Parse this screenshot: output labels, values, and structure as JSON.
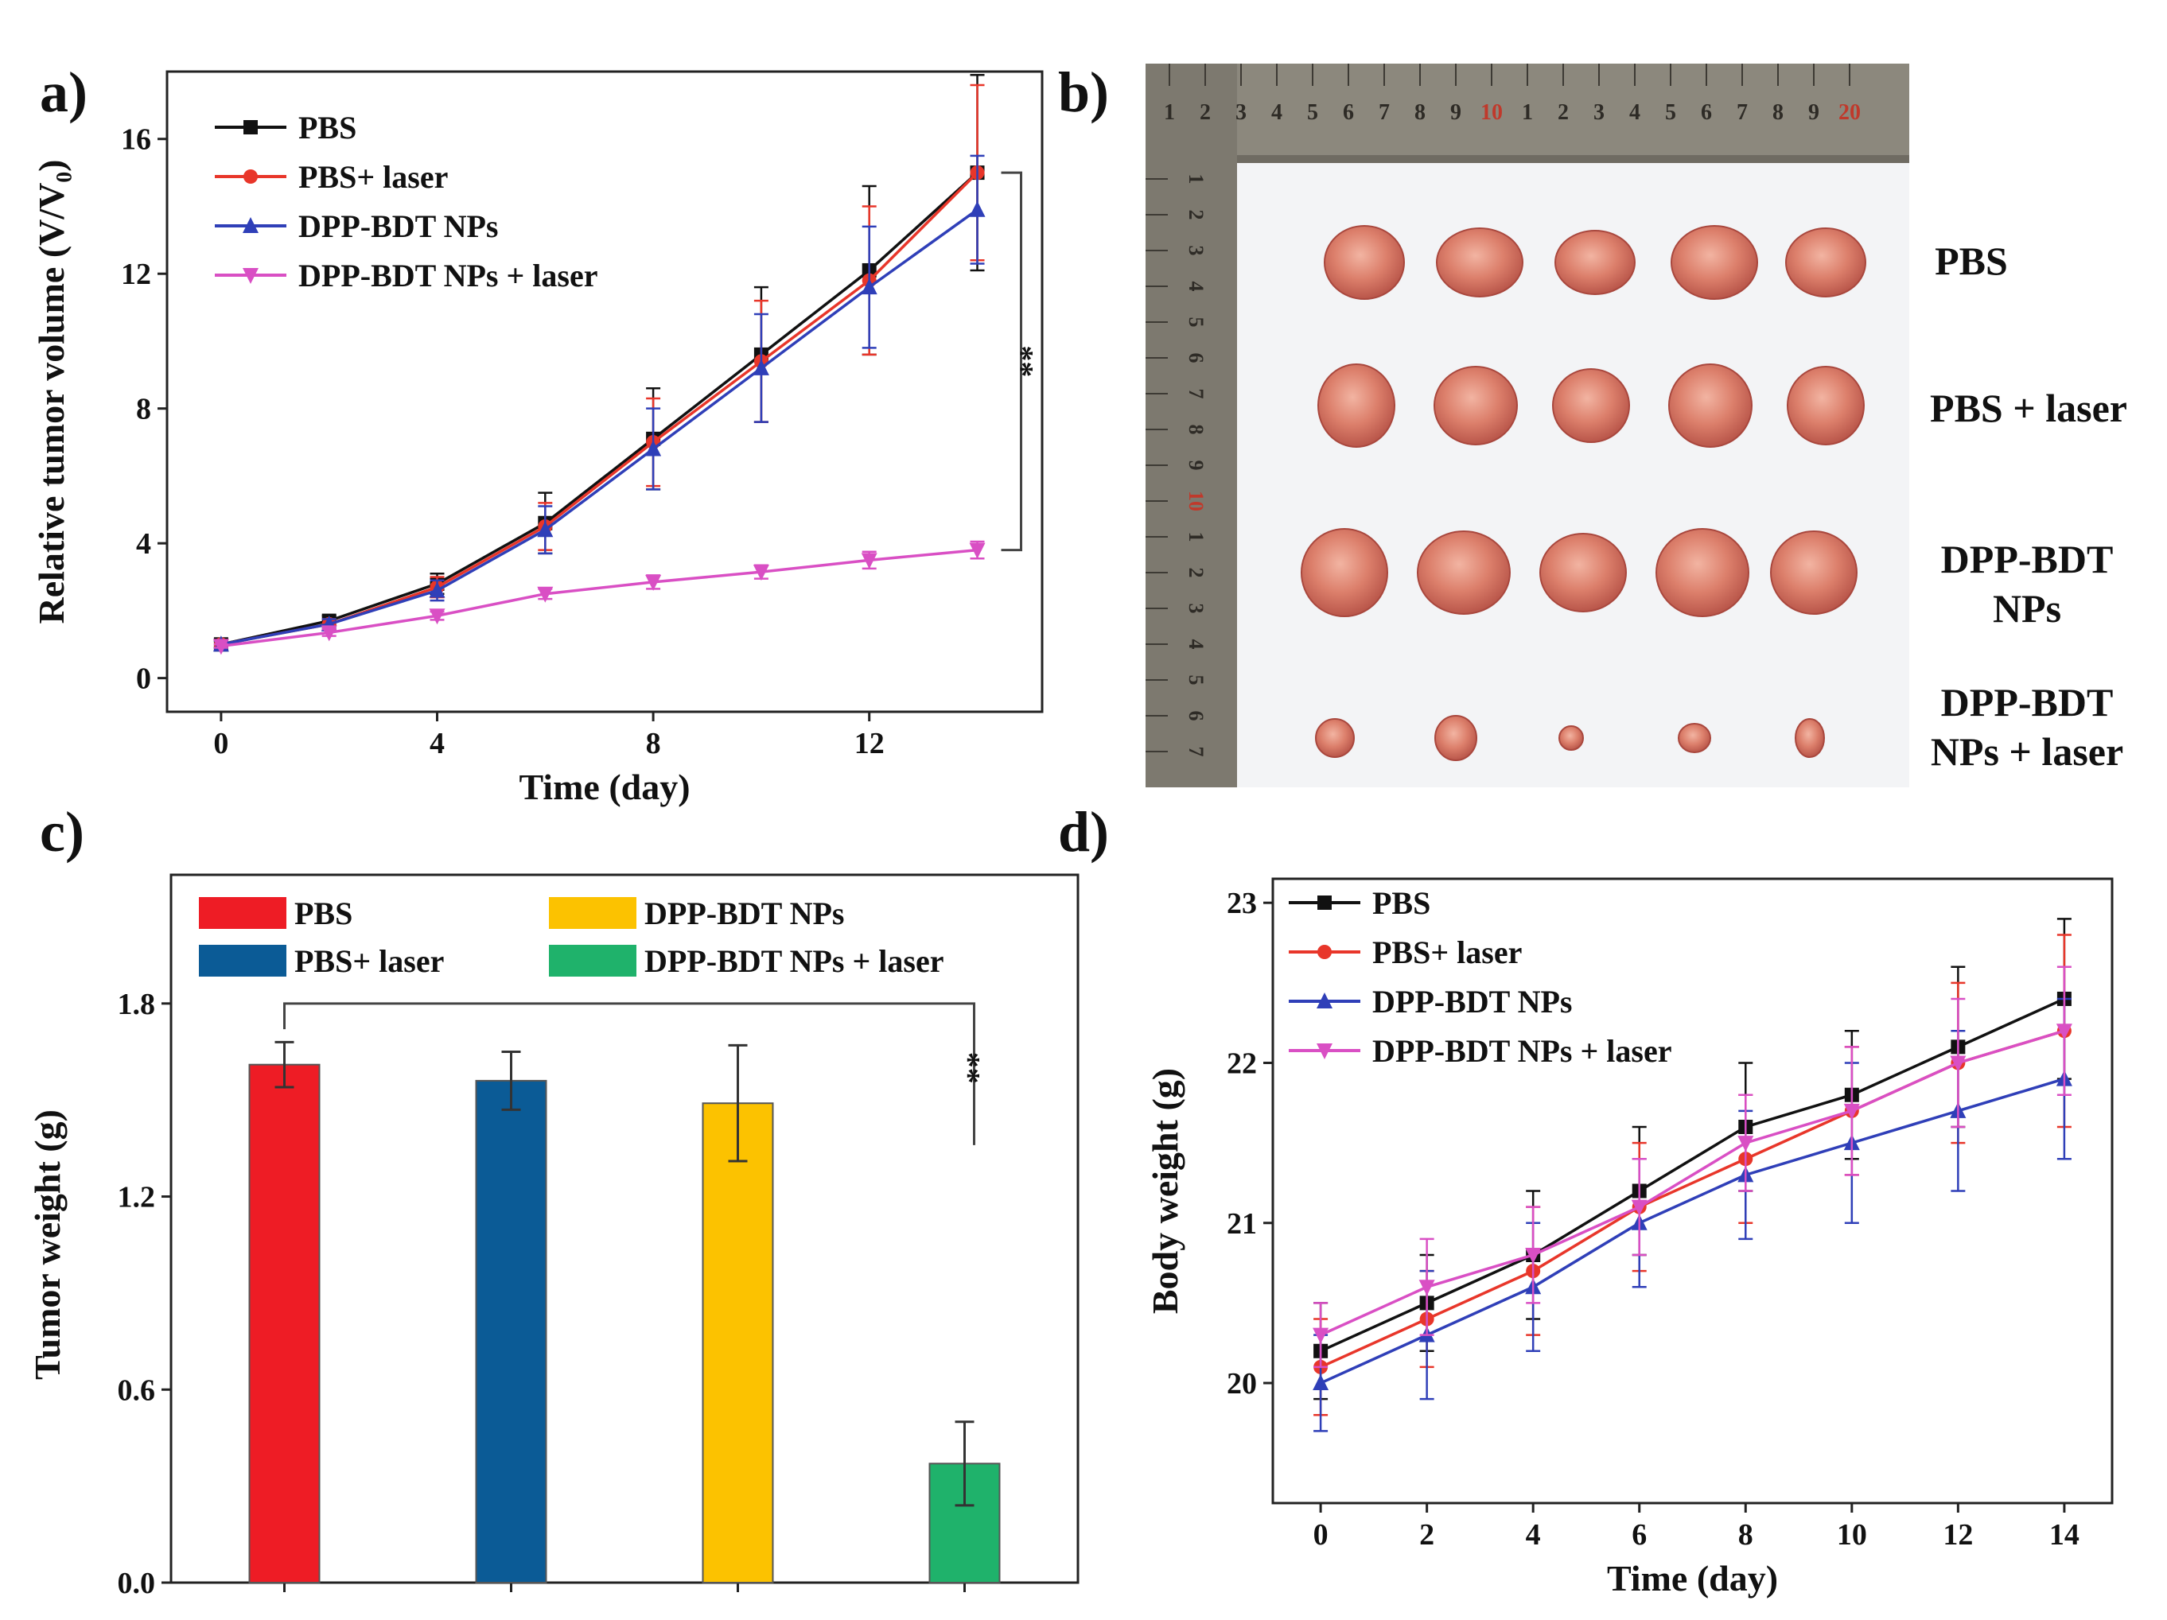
{
  "panels": {
    "a": "a)",
    "b": "b)",
    "c": "c)",
    "d": "d)"
  },
  "chart_data": [
    {
      "id": "a",
      "type": "line",
      "xlabel": "Time (day)",
      "ylabel": "Relative tumor volume (V/V₀)",
      "xlim": [
        -1,
        15.2
      ],
      "ylim": [
        -1,
        18
      ],
      "xticks": [
        0,
        4,
        8,
        12
      ],
      "yticks": [
        0,
        4,
        8,
        12,
        16
      ],
      "x": [
        0,
        2,
        4,
        6,
        8,
        10,
        12,
        14
      ],
      "series": [
        {
          "name": "PBS",
          "color": "#111111",
          "marker": "square",
          "values": [
            1.0,
            1.7,
            2.8,
            4.6,
            7.1,
            9.6,
            12.1,
            15.0
          ],
          "errors": [
            0.1,
            0.15,
            0.3,
            0.9,
            1.5,
            2.0,
            2.5,
            2.9
          ]
        },
        {
          "name": "PBS+ laser",
          "color": "#e8362a",
          "marker": "circle",
          "values": [
            1.0,
            1.6,
            2.7,
            4.5,
            7.0,
            9.4,
            11.8,
            15.0
          ],
          "errors": [
            0.1,
            0.15,
            0.3,
            0.7,
            1.3,
            1.8,
            2.2,
            2.6
          ]
        },
        {
          "name": "DPP-BDT NPs",
          "color": "#2f3fb8",
          "marker": "triangle",
          "values": [
            1.0,
            1.6,
            2.6,
            4.4,
            6.8,
            9.2,
            11.6,
            13.9
          ],
          "errors": [
            0.1,
            0.15,
            0.3,
            0.7,
            1.2,
            1.6,
            1.8,
            1.6
          ]
        },
        {
          "name": "DPP-BDT NPs + laser",
          "color": "#d94fc4",
          "marker": "triangle-down",
          "values": [
            0.95,
            1.35,
            1.85,
            2.5,
            2.85,
            3.15,
            3.5,
            3.8
          ],
          "errors": [
            0.05,
            0.1,
            0.12,
            0.15,
            0.2,
            0.2,
            0.25,
            0.25
          ]
        }
      ],
      "significance": "**"
    },
    {
      "id": "c",
      "type": "bar",
      "xlabel": "",
      "ylabel": "Tumor weight (g)",
      "ylim": [
        0,
        2.2
      ],
      "yticks": [
        0.0,
        0.6,
        1.2,
        1.8
      ],
      "categories": [
        "PBS",
        "PBS+ laser",
        "DPP-BDT NPs",
        "DPP-BDT NPs + laser"
      ],
      "values": [
        1.61,
        1.56,
        1.49,
        0.37
      ],
      "errors": [
        0.07,
        0.09,
        0.18,
        0.13
      ],
      "colors": [
        "#ee1c25",
        "#0b5b96",
        "#fcc200",
        "#1fb26b"
      ],
      "significance": "**"
    },
    {
      "id": "d",
      "type": "line",
      "xlabel": "Time (day)",
      "ylabel": "Body weight (g)",
      "xlim": [
        -0.9,
        14.9
      ],
      "ylim": [
        19.25,
        23.15
      ],
      "xticks": [
        0,
        2,
        4,
        6,
        8,
        10,
        12,
        14
      ],
      "yticks": [
        20,
        21,
        22,
        23
      ],
      "x": [
        0,
        2,
        4,
        6,
        8,
        10,
        12,
        14
      ],
      "series": [
        {
          "name": "PBS",
          "color": "#111111",
          "marker": "square",
          "values": [
            20.2,
            20.5,
            20.8,
            21.2,
            21.6,
            21.8,
            22.1,
            22.4
          ],
          "errors": [
            0.3,
            0.3,
            0.4,
            0.4,
            0.4,
            0.4,
            0.5,
            0.5
          ]
        },
        {
          "name": "PBS+ laser",
          "color": "#e8362a",
          "marker": "circle",
          "values": [
            20.1,
            20.4,
            20.7,
            21.1,
            21.4,
            21.7,
            22.0,
            22.2
          ],
          "errors": [
            0.3,
            0.3,
            0.4,
            0.4,
            0.4,
            0.4,
            0.5,
            0.6
          ]
        },
        {
          "name": "DPP-BDT NPs",
          "color": "#2f3fb8",
          "marker": "triangle",
          "values": [
            20.0,
            20.3,
            20.6,
            21.0,
            21.3,
            21.5,
            21.7,
            21.9
          ],
          "errors": [
            0.3,
            0.4,
            0.4,
            0.4,
            0.4,
            0.5,
            0.5,
            0.5
          ]
        },
        {
          "name": "DPP-BDT NPs + laser",
          "color": "#d94fc4",
          "marker": "triangle-down",
          "values": [
            20.3,
            20.6,
            20.8,
            21.1,
            21.5,
            21.7,
            22.0,
            22.2
          ],
          "errors": [
            0.2,
            0.3,
            0.3,
            0.3,
            0.3,
            0.4,
            0.4,
            0.4
          ]
        }
      ]
    }
  ],
  "photo": {
    "row_labels": [
      [
        "PBS"
      ],
      [
        "PBS + laser"
      ],
      [
        "DPP-BDT",
        "NPs"
      ],
      [
        "DPP-BDT",
        "NPs + laser"
      ]
    ],
    "ruler_top": [
      "1",
      "2",
      "3",
      "4",
      "5",
      "6",
      "7",
      "8",
      "9",
      "10",
      "1",
      "2",
      "3",
      "4",
      "5",
      "6",
      "7",
      "8",
      "9",
      "20"
    ],
    "ruler_left": [
      "1",
      "2",
      "3",
      "4",
      "5",
      "6",
      "7",
      "8",
      "9",
      "10",
      "1",
      "2",
      "3",
      "4",
      "5",
      "6",
      "7"
    ],
    "tumor_color": "#d97a67"
  }
}
